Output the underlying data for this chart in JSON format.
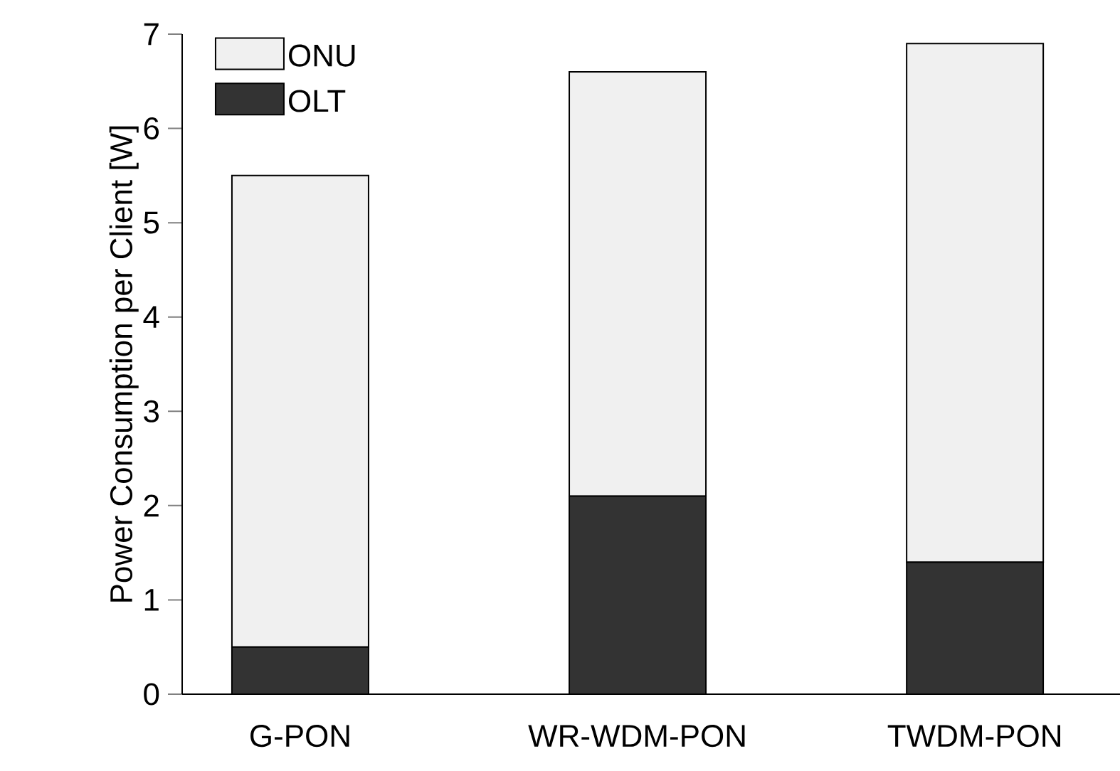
{
  "chart_data": {
    "type": "bar",
    "stacked": true,
    "ylabel": "Power Consumption per Client [W]",
    "categories": [
      "G-PON",
      "WR-WDM-PON",
      "TWDM-PON"
    ],
    "series": [
      {
        "name": "OLT",
        "color": "#333333",
        "values": [
          0.5,
          2.1,
          1.4
        ]
      },
      {
        "name": "ONU",
        "color": "#f0f0f0",
        "values": [
          5.0,
          4.5,
          5.5
        ]
      }
    ],
    "ylim": [
      0,
      7
    ],
    "yticks": [
      0,
      1,
      2,
      3,
      4,
      5,
      6,
      7
    ],
    "legend": "top left",
    "grid": false
  }
}
